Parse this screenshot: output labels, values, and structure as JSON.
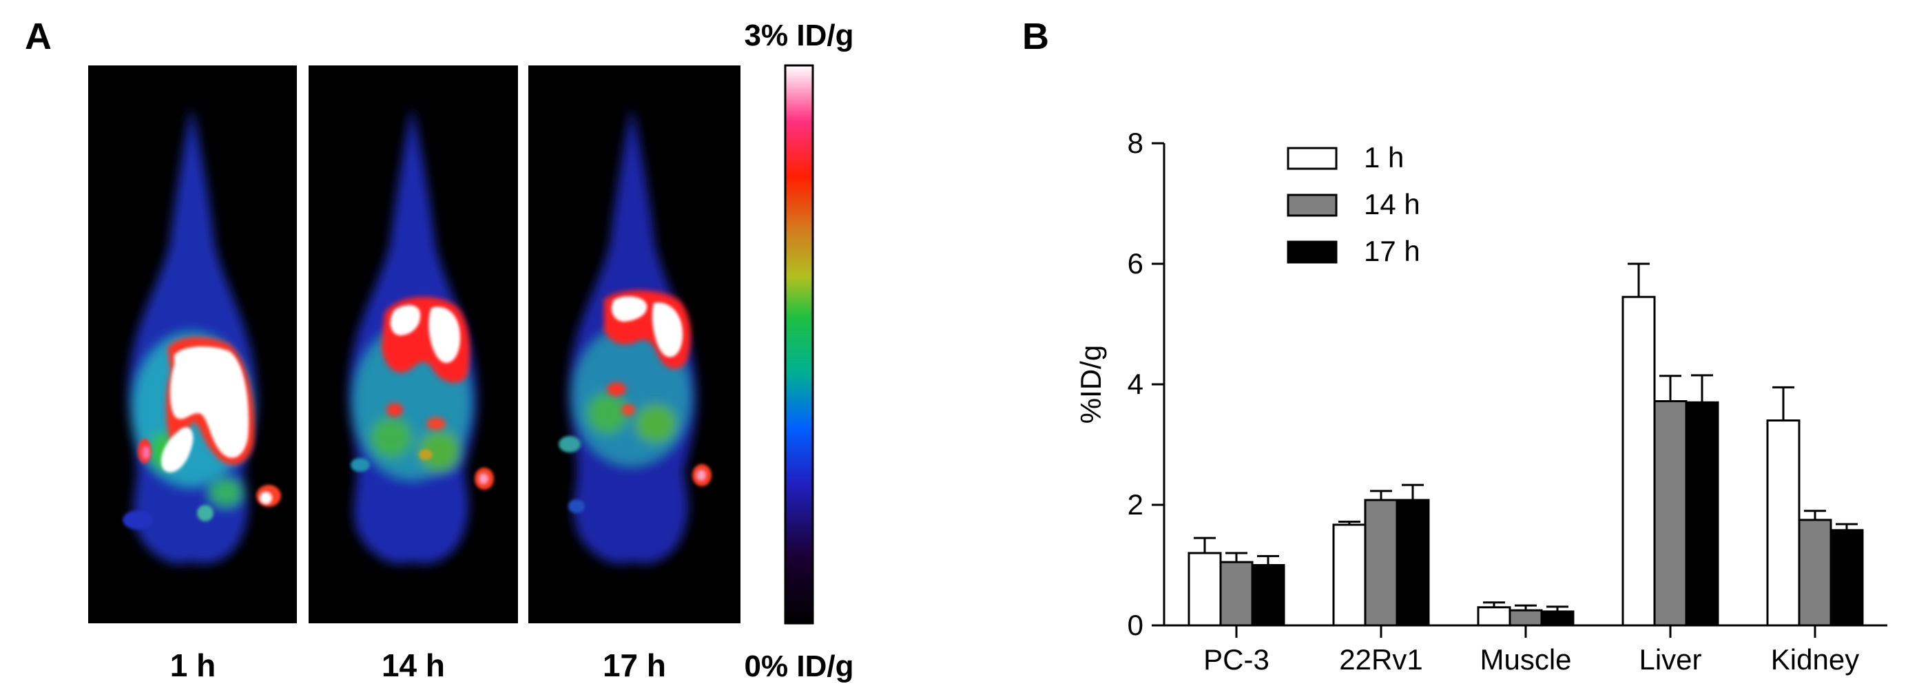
{
  "panel_a": {
    "letter": "A",
    "panels": [
      {
        "label": "1 h"
      },
      {
        "label": "14 h"
      },
      {
        "label": "17 h"
      }
    ],
    "colorbar": {
      "max_label": "3% ID/g",
      "min_label": "0% ID/g",
      "colormap": "rainbow",
      "range": [
        0,
        3
      ]
    }
  },
  "panel_b": {
    "letter": "B"
  },
  "chart_data": {
    "type": "bar",
    "categories": [
      "PC-3",
      "22Rv1",
      "Muscle",
      "Liver",
      "Kidney"
    ],
    "series": [
      {
        "name": "1 h",
        "color": "#ffffff",
        "values": [
          1.2,
          1.67,
          0.3,
          5.45,
          3.4
        ],
        "errors": [
          0.25,
          0.05,
          0.08,
          0.55,
          0.55
        ]
      },
      {
        "name": "14 h",
        "color": "#808080",
        "values": [
          1.05,
          2.08,
          0.25,
          3.72,
          1.75
        ],
        "errors": [
          0.15,
          0.15,
          0.08,
          0.42,
          0.15
        ]
      },
      {
        "name": "17 h",
        "color": "#000000",
        "values": [
          1.0,
          2.08,
          0.23,
          3.7,
          1.58
        ],
        "errors": [
          0.15,
          0.25,
          0.08,
          0.45,
          0.1
        ]
      }
    ],
    "ylabel": "%ID/g",
    "xlabel": "",
    "ylim": [
      0,
      8
    ],
    "yticks": [
      0,
      2,
      4,
      6,
      8
    ],
    "legend_position": "top-left",
    "grid": false
  }
}
